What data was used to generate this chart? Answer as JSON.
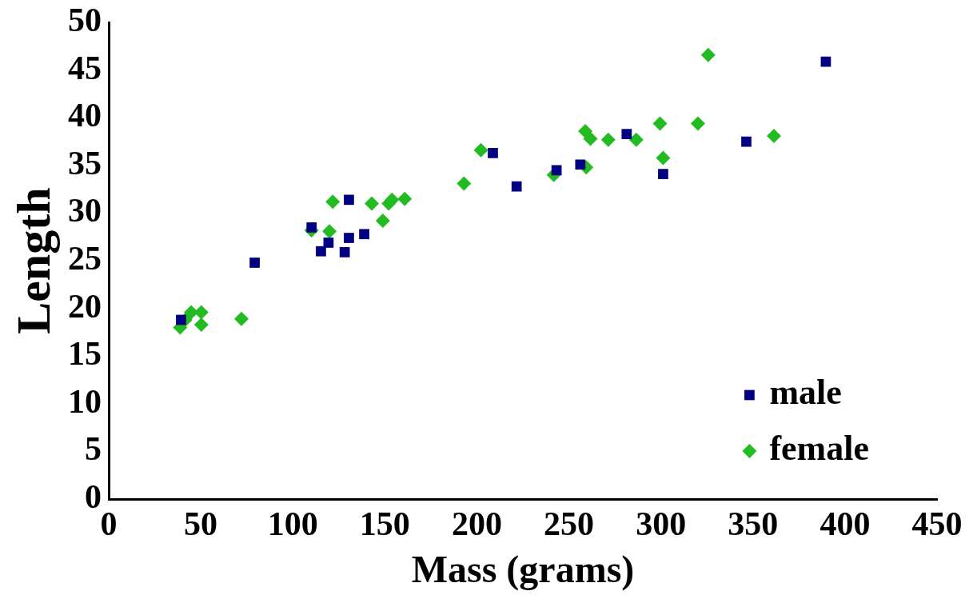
{
  "chart_data": {
    "type": "scatter",
    "xlabel": "Mass (grams)",
    "ylabel": "Length",
    "xlim": [
      0,
      450
    ],
    "xticks": [
      0,
      50,
      100,
      150,
      200,
      250,
      300,
      350,
      400,
      450
    ],
    "ylim": [
      0,
      50
    ],
    "yticks": [
      0,
      5,
      10,
      15,
      20,
      25,
      30,
      35,
      40,
      45,
      50
    ],
    "grid": false,
    "legend": "bottom right",
    "series": [
      {
        "name": "male",
        "color": "#000080",
        "marker": "square",
        "x": [
          39.3,
          79.3,
          110.2,
          115.3,
          119.4,
          128.2,
          130.5,
          130.5,
          138.8,
          208.7,
          221.6,
          243.3,
          256.2,
          281.4,
          301.2,
          346.4,
          389.6
        ],
        "values": [
          18.8,
          24.8,
          28.5,
          26.0,
          26.9,
          25.9,
          27.4,
          31.4,
          27.8,
          36.3,
          32.8,
          34.5,
          35.1,
          38.3,
          34.1,
          37.5,
          45.9
        ]
      },
      {
        "name": "female",
        "color": "#22bb22",
        "marker": "diamond",
        "x": [
          38.8,
          41.6,
          44.8,
          50.3,
          50.3,
          72.1,
          110.2,
          119.9,
          121.7,
          142.9,
          148.9,
          152.1,
          153.9,
          160.8,
          193.0,
          202.2,
          241.8,
          258.9,
          261.7,
          259.4,
          271.4,
          286.6,
          299.5,
          301.2,
          320.1,
          325.7,
          361.4
        ],
        "values": [
          18.0,
          18.8,
          19.6,
          19.6,
          18.3,
          18.9,
          28.2,
          28.1,
          31.2,
          31.0,
          29.2,
          31.0,
          31.4,
          31.5,
          33.1,
          36.6,
          34.0,
          38.6,
          37.8,
          34.8,
          37.7,
          37.7,
          39.4,
          35.8,
          39.4,
          46.6,
          38.1
        ]
      }
    ]
  }
}
